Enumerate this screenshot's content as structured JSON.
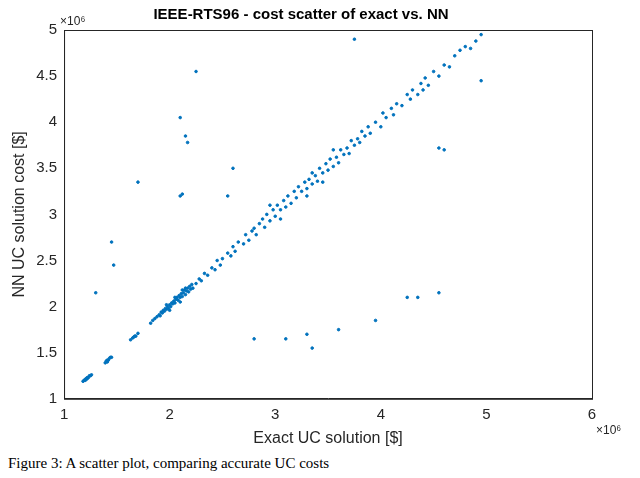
{
  "chart_data": {
    "type": "scatter",
    "title": "IEEE-RTS96 - cost scatter of exact vs. NN",
    "x_label": "Exact UC solution [$]",
    "y_label": "NN UC solution cost [$]",
    "annotations": [
      "×10⁶",
      "×10⁶"
    ],
    "caption": "Figure 3: A scatter plot, comparing accurate UC costs",
    "color": "#0072bd",
    "marker": "point",
    "grid": false,
    "xlim": [
      1,
      6
    ],
    "xticks": [
      1,
      2,
      3,
      4,
      5,
      6
    ],
    "ylim": [
      1,
      5
    ],
    "yticks": [
      1,
      1.5,
      2,
      2.5,
      3,
      3.5,
      4,
      4.5,
      5
    ],
    "x": [
      1.18,
      1.19,
      1.2,
      1.2,
      1.21,
      1.22,
      1.22,
      1.23,
      1.24,
      1.25,
      1.26,
      1.21,
      1.39,
      1.4,
      1.41,
      1.42,
      1.43,
      1.44,
      1.45,
      1.41,
      1.63,
      1.65,
      1.67,
      1.68,
      1.7,
      1.66,
      1.82,
      1.84,
      1.86,
      1.88,
      1.9,
      1.91,
      1.92,
      1.93,
      1.94,
      1.95,
      1.96,
      1.97,
      1.98,
      1.99,
      2.0,
      2.01,
      2.02,
      2.03,
      2.04,
      2.05,
      2.06,
      2.07,
      2.08,
      2.09,
      2.1,
      2.11,
      2.12,
      2.13,
      2.14,
      2.15,
      2.16,
      2.17,
      2.18,
      2.19,
      2.2,
      2.21,
      2.22,
      2.05,
      2.1,
      2.0,
      2.15,
      1.97,
      2.12,
      2.25,
      2.28,
      2.3,
      2.33,
      2.36,
      2.4,
      2.43,
      2.45,
      2.48,
      2.5,
      2.55,
      2.58,
      2.6,
      2.62,
      2.65,
      2.7,
      2.72,
      2.75,
      2.78,
      2.8,
      2.82,
      2.85,
      2.88,
      2.9,
      2.92,
      2.95,
      2.98,
      3.0,
      3.02,
      3.05,
      3.08,
      3.1,
      3.12,
      3.15,
      3.18,
      3.2,
      2.95,
      3.05,
      3.22,
      3.25,
      3.28,
      3.3,
      3.32,
      3.35,
      3.38,
      3.4,
      3.42,
      3.45,
      3.48,
      3.5,
      3.52,
      3.55,
      3.58,
      3.6,
      3.62,
      3.65,
      3.68,
      3.7,
      3.72,
      3.75,
      3.78,
      3.8,
      3.35,
      3.45,
      3.55,
      3.3,
      3.82,
      3.85,
      3.88,
      3.9,
      3.95,
      4.0,
      4.02,
      4.05,
      4.1,
      4.12,
      4.15,
      4.2,
      4.25,
      4.28,
      4.3,
      4.35,
      4.38,
      4.4,
      4.42,
      4.45,
      4.5,
      4.55,
      4.6,
      4.65,
      4.7,
      4.75,
      4.8,
      4.85,
      4.9,
      4.95,
      1.3,
      1.45,
      1.47,
      1.7,
      2.1,
      2.15,
      2.17,
      2.25,
      2.1,
      2.12,
      2.55,
      2.6,
      3.75,
      4.55,
      4.6,
      4.95,
      2.8,
      3.1,
      3.3,
      3.35,
      3.6,
      3.95,
      4.25,
      4.35,
      4.55
    ],
    "values": [
      1.19,
      1.2,
      1.21,
      1.2,
      1.22,
      1.22,
      1.23,
      1.23,
      1.25,
      1.25,
      1.26,
      1.21,
      1.39,
      1.41,
      1.42,
      1.42,
      1.44,
      1.45,
      1.45,
      1.4,
      1.64,
      1.66,
      1.68,
      1.68,
      1.71,
      1.67,
      1.82,
      1.85,
      1.87,
      1.89,
      1.91,
      1.9,
      1.94,
      1.93,
      1.96,
      1.95,
      1.98,
      1.97,
      2.0,
      1.98,
      2.02,
      2.0,
      2.04,
      2.03,
      2.06,
      2.04,
      2.08,
      2.1,
      2.07,
      2.12,
      2.1,
      2.14,
      2.11,
      2.15,
      2.18,
      2.13,
      2.17,
      2.2,
      2.16,
      2.22,
      2.19,
      2.24,
      2.2,
      2.1,
      2.05,
      1.96,
      2.2,
      2.02,
      2.18,
      2.25,
      2.3,
      2.28,
      2.36,
      2.34,
      2.42,
      2.4,
      2.5,
      2.45,
      2.52,
      2.58,
      2.55,
      2.65,
      2.6,
      2.7,
      2.68,
      2.78,
      2.72,
      2.82,
      2.85,
      2.78,
      2.9,
      2.95,
      2.86,
      3.0,
      2.93,
      3.05,
      2.98,
      3.1,
      3.05,
      3.15,
      3.08,
      3.2,
      3.12,
      3.25,
      3.18,
      3.1,
      2.95,
      3.3,
      3.25,
      3.35,
      3.28,
      3.38,
      3.33,
      3.42,
      3.36,
      3.5,
      3.45,
      3.55,
      3.48,
      3.6,
      3.52,
      3.62,
      3.56,
      3.7,
      3.65,
      3.72,
      3.66,
      3.8,
      3.75,
      3.82,
      3.78,
      3.45,
      3.35,
      3.7,
      3.2,
      3.9,
      3.85,
      3.95,
      3.88,
      4.0,
      3.95,
      4.1,
      4.05,
      4.15,
      4.08,
      4.2,
      4.18,
      4.3,
      4.25,
      4.35,
      4.3,
      4.42,
      4.35,
      4.48,
      4.4,
      4.55,
      4.5,
      4.62,
      4.6,
      4.72,
      4.78,
      4.82,
      4.8,
      4.88,
      4.95,
      2.15,
      2.7,
      2.45,
      3.35,
      4.05,
      3.85,
      3.78,
      4.55,
      3.2,
      3.22,
      3.2,
      3.5,
      4.9,
      3.72,
      3.7,
      4.45,
      1.65,
      1.65,
      1.7,
      1.55,
      1.75,
      1.85,
      2.1,
      2.1,
      2.15
    ]
  }
}
